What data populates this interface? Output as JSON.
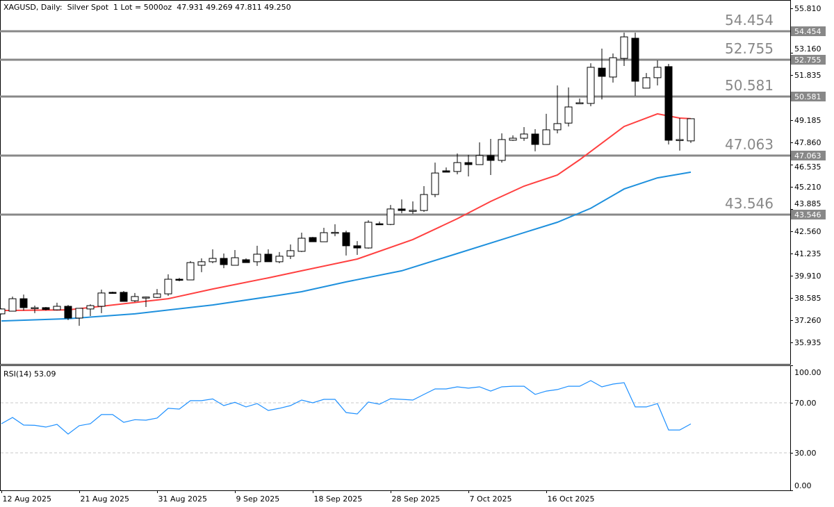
{
  "header": {
    "symbol": "XAGUSD, Daily:  Silver Spot  1 Lot = 5000oz",
    "ohlc": "47.931 49.269 47.811 49.250"
  },
  "rsi": {
    "label": "RSI(14) 53.09"
  },
  "colors": {
    "ma_fast": "#ff4040",
    "ma_slow": "#1e90dd",
    "rsi": "#1e90ff",
    "level": "#888888",
    "bull_body": "#ffffff",
    "bear_body": "#000000"
  },
  "chart_data": [
    {
      "type": "candlestick",
      "title": "XAGUSD, Daily",
      "ylim": [
        35.3,
        56.3
      ],
      "y_ticks": [
        "55.810",
        "53.160",
        "51.835",
        "49.185",
        "47.860",
        "46.535",
        "45.210",
        "43.885",
        "42.560",
        "41.235",
        "39.910",
        "38.585",
        "37.260",
        "35.935"
      ],
      "x_tick_labels": [
        {
          "index": 0,
          "label": "12 Aug 2025"
        },
        {
          "index": 7,
          "label": "21 Aug 2025"
        },
        {
          "index": 14,
          "label": "31 Aug 2025"
        },
        {
          "index": 21,
          "label": "9 Sep 2025"
        },
        {
          "index": 28,
          "label": "18 Sep 2025"
        },
        {
          "index": 35,
          "label": "28 Sep 2025"
        },
        {
          "index": 42,
          "label": "7 Oct 2025"
        },
        {
          "index": 49,
          "label": "16 Oct 2025"
        }
      ],
      "levels": [
        {
          "value": 54.454,
          "label": "54.454"
        },
        {
          "value": 52.755,
          "label": "52.755"
        },
        {
          "value": 50.581,
          "label": "50.581"
        },
        {
          "value": 47.063,
          "label": "47.063"
        },
        {
          "value": 43.546,
          "label": "43.546"
        }
      ],
      "ohlc": [
        [
          37.64,
          37.97,
          37.6,
          37.93
        ],
        [
          37.8,
          38.67,
          37.8,
          38.54
        ],
        [
          38.54,
          38.79,
          37.84,
          38.01
        ],
        [
          37.98,
          38.13,
          37.68,
          38.01
        ],
        [
          38.01,
          38.05,
          37.84,
          37.9
        ],
        [
          37.88,
          38.3,
          37.84,
          38.09
        ],
        [
          38.09,
          38.17,
          37.27,
          37.39
        ],
        [
          37.39,
          37.97,
          36.93,
          37.97
        ],
        [
          37.93,
          38.21,
          37.51,
          38.13
        ],
        [
          38.09,
          39.08,
          37.68,
          38.88
        ],
        [
          38.92,
          38.96,
          38.84,
          38.88
        ],
        [
          38.92,
          39.0,
          38.38,
          38.38
        ],
        [
          38.42,
          38.88,
          38.34,
          38.67
        ],
        [
          38.6,
          38.67,
          38.05,
          38.64
        ],
        [
          38.62,
          39.12,
          38.58,
          38.83
        ],
        [
          38.83,
          39.99,
          38.71,
          39.7
        ],
        [
          39.7,
          39.78,
          39.58,
          39.66
        ],
        [
          39.66,
          40.78,
          39.66,
          40.69
        ],
        [
          40.53,
          40.94,
          40.12,
          40.74
        ],
        [
          40.74,
          41.48,
          40.65,
          40.94
        ],
        [
          40.94,
          41.23,
          40.36,
          40.57
        ],
        [
          40.53,
          41.44,
          40.53,
          40.98
        ],
        [
          40.86,
          40.94,
          40.69,
          40.69
        ],
        [
          40.74,
          41.69,
          40.49,
          41.19
        ],
        [
          41.19,
          41.48,
          40.74,
          40.74
        ],
        [
          40.74,
          41.32,
          40.65,
          41.07
        ],
        [
          41.07,
          41.77,
          40.9,
          41.4
        ],
        [
          41.36,
          42.47,
          41.32,
          42.14
        ],
        [
          42.18,
          42.22,
          41.93,
          41.93
        ],
        [
          41.93,
          42.76,
          41.93,
          42.47
        ],
        [
          42.45,
          42.97,
          42.26,
          42.49
        ],
        [
          42.47,
          42.59,
          41.11,
          41.69
        ],
        [
          41.69,
          41.97,
          41.15,
          41.56
        ],
        [
          41.56,
          43.21,
          41.52,
          43.09
        ],
        [
          43.0,
          43.13,
          42.96,
          42.96
        ],
        [
          42.96,
          44.12,
          42.92,
          43.88
        ],
        [
          43.88,
          44.45,
          43.63,
          43.79
        ],
        [
          43.78,
          44.33,
          43.59,
          43.8
        ],
        [
          43.79,
          45.24,
          43.71,
          44.74
        ],
        [
          44.74,
          46.64,
          44.58,
          46.02
        ],
        [
          46.15,
          46.35,
          46.07,
          46.07
        ],
        [
          46.11,
          47.18,
          45.94,
          46.64
        ],
        [
          46.64,
          47.1,
          45.82,
          46.52
        ],
        [
          46.52,
          47.84,
          46.52,
          47.06
        ],
        [
          47.06,
          48.05,
          45.9,
          46.77
        ],
        [
          46.77,
          48.38,
          46.64,
          48.01
        ],
        [
          47.97,
          48.26,
          47.93,
          48.09
        ],
        [
          48.09,
          48.75,
          47.93,
          48.34
        ],
        [
          48.34,
          48.63,
          47.31,
          47.72
        ],
        [
          47.72,
          49.54,
          47.72,
          48.59
        ],
        [
          48.59,
          51.23,
          48.38,
          48.96
        ],
        [
          48.99,
          51.11,
          48.79,
          49.95
        ],
        [
          50.19,
          50.45,
          50.19,
          50.2
        ],
        [
          50.16,
          52.55,
          49.99,
          52.31
        ],
        [
          52.26,
          53.42,
          50.4,
          51.77
        ],
        [
          51.73,
          53.13,
          51.4,
          52.88
        ],
        [
          52.84,
          54.37,
          52.39,
          54.12
        ],
        [
          54.04,
          54.37,
          50.61,
          51.48
        ],
        [
          51.07,
          51.97,
          51.07,
          51.69
        ],
        [
          51.69,
          52.72,
          51.23,
          52.31
        ],
        [
          52.35,
          52.51,
          47.72,
          47.97
        ],
        [
          47.97,
          49.29,
          47.35,
          48.01
        ],
        [
          47.931,
          49.269,
          47.811,
          49.25
        ]
      ],
      "ma_fast": [
        [
          0,
          37.84
        ],
        [
          6,
          37.88
        ],
        [
          9,
          38.09
        ],
        [
          15,
          38.54
        ],
        [
          19,
          39.12
        ],
        [
          24,
          39.78
        ],
        [
          27,
          40.2
        ],
        [
          32,
          40.9
        ],
        [
          37,
          42.06
        ],
        [
          41,
          43.3
        ],
        [
          44,
          44.33
        ],
        [
          47,
          45.24
        ],
        [
          50,
          45.9
        ],
        [
          52,
          46.81
        ],
        [
          56,
          48.79
        ],
        [
          59,
          49.54
        ],
        [
          61,
          49.29
        ],
        [
          62,
          49.25
        ]
      ],
      "ma_slow": [
        [
          0,
          37.22
        ],
        [
          6,
          37.35
        ],
        [
          12,
          37.64
        ],
        [
          19,
          38.17
        ],
        [
          25,
          38.75
        ],
        [
          27,
          38.96
        ],
        [
          31,
          39.54
        ],
        [
          36,
          40.2
        ],
        [
          41,
          41.23
        ],
        [
          45,
          42.06
        ],
        [
          50,
          43.09
        ],
        [
          53,
          43.92
        ],
        [
          56,
          45.07
        ],
        [
          59,
          45.73
        ],
        [
          62,
          46.07
        ]
      ]
    },
    {
      "type": "line",
      "title": "RSI(14)",
      "ylim": [
        0,
        100
      ],
      "y_ticks": [
        "100.00",
        "70.00",
        "30.00",
        "0.00"
      ],
      "levels": [
        70,
        30
      ],
      "values": [
        53.3,
        58.3,
        52.2,
        52,
        50.6,
        52.8,
        45,
        51.7,
        53.3,
        60.6,
        60.6,
        54.4,
        56.5,
        56.1,
        57.8,
        65.6,
        65,
        71.7,
        71.7,
        73.1,
        67.8,
        70.4,
        66.7,
        69.4,
        63.9,
        65.6,
        67.8,
        72.2,
        70,
        72.8,
        72.8,
        62.2,
        61.1,
        70.6,
        68.9,
        73.3,
        72.8,
        72.2,
        76.7,
        81.1,
        81.1,
        82.8,
        81.7,
        82.8,
        79.4,
        82.8,
        83.3,
        83.3,
        76.7,
        79.4,
        80.6,
        83.3,
        83.3,
        87.8,
        82.8,
        85,
        86.1,
        66.7,
        66.7,
        69.4,
        48.3,
        48.3,
        53.09
      ]
    }
  ]
}
